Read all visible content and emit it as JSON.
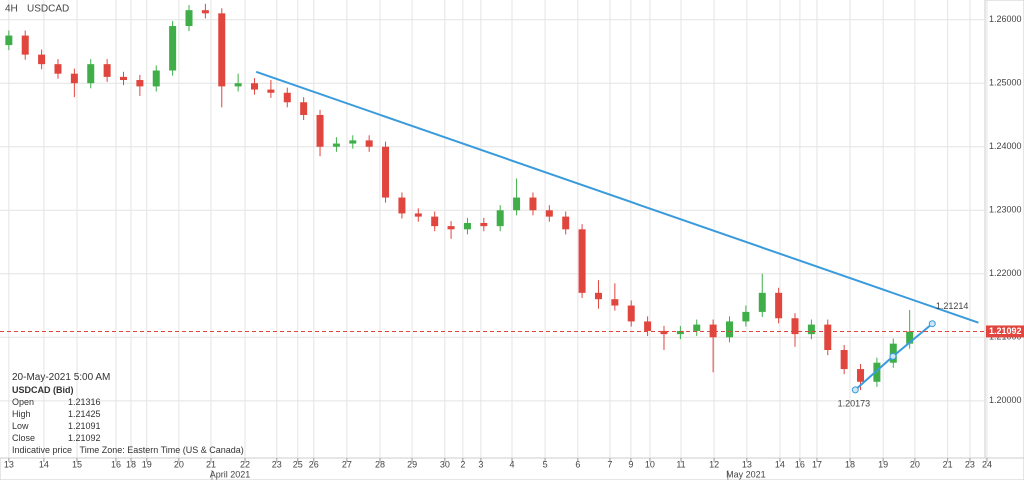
{
  "chart_data": {
    "type": "candlestick",
    "timeframe": "4H",
    "title": "USDCAD",
    "xlim": [
      -0.27,
      29.8
    ],
    "ylim": [
      1.191,
      1.2631
    ],
    "yticks": [
      {
        "value": 1.2,
        "label": "1.20000"
      },
      {
        "value": 1.21,
        "label": "1.21000"
      },
      {
        "value": 1.22,
        "label": "1.22000"
      },
      {
        "value": 1.23,
        "label": "1.23000"
      },
      {
        "value": 1.24,
        "label": "1.24000"
      },
      {
        "value": 1.25,
        "label": "1.25000"
      },
      {
        "value": 1.26,
        "label": "1.26000"
      }
    ],
    "xticks": [
      {
        "value": 0,
        "label": "13"
      },
      {
        "value": 1.07,
        "label": "14"
      },
      {
        "value": 2.08,
        "label": "15"
      },
      {
        "value": 3.27,
        "label": "16"
      },
      {
        "value": 3.73,
        "label": "18"
      },
      {
        "value": 4.21,
        "label": "19"
      },
      {
        "value": 5.19,
        "label": "20"
      },
      {
        "value": 6.17,
        "label": "21"
      },
      {
        "value": 7.21,
        "label": "22"
      },
      {
        "value": 8.18,
        "label": "23"
      },
      {
        "value": 8.82,
        "label": "25"
      },
      {
        "value": 9.31,
        "label": "26"
      },
      {
        "value": 10.32,
        "label": "27"
      },
      {
        "value": 11.33,
        "label": "28"
      },
      {
        "value": 12.31,
        "label": "29"
      },
      {
        "value": 13.31,
        "label": "30"
      },
      {
        "value": 13.86,
        "label": "2"
      },
      {
        "value": 14.41,
        "label": "3"
      },
      {
        "value": 15.36,
        "label": "4"
      },
      {
        "value": 16.37,
        "label": "5"
      },
      {
        "value": 17.37,
        "label": "6"
      },
      {
        "value": 18.35,
        "label": "7"
      },
      {
        "value": 18.99,
        "label": "9"
      },
      {
        "value": 19.57,
        "label": "10"
      },
      {
        "value": 20.52,
        "label": "11"
      },
      {
        "value": 21.53,
        "label": "12"
      },
      {
        "value": 22.53,
        "label": "13"
      },
      {
        "value": 23.54,
        "label": "14"
      },
      {
        "value": 24.15,
        "label": "16"
      },
      {
        "value": 24.67,
        "label": "17"
      },
      {
        "value": 25.68,
        "label": "18"
      },
      {
        "value": 26.69,
        "label": "19"
      },
      {
        "value": 27.66,
        "label": "20"
      },
      {
        "value": 28.66,
        "label": "21"
      },
      {
        "value": 29.34,
        "label": "23"
      },
      {
        "value": 29.86,
        "label": "24"
      }
    ],
    "month_ticks": [
      {
        "value": 6.75,
        "label": "April 2021"
      },
      {
        "value": 22.5,
        "label": "May 2021"
      }
    ],
    "grid": true,
    "up_color": "#3fae49",
    "down_color": "#e0453e",
    "x": [
      0,
      0.5,
      1,
      1.5,
      2,
      2.5,
      3,
      3.5,
      4,
      4.5,
      5,
      5.5,
      6,
      6.5,
      7,
      7.5,
      8,
      8.5,
      9,
      9.5,
      10,
      10.5,
      11,
      11.5,
      12,
      12.5,
      13,
      13.5,
      14,
      14.5,
      15,
      15.5,
      16,
      16.5,
      17,
      17.5,
      18,
      18.5,
      19,
      19.5,
      20,
      20.5,
      21,
      21.5,
      22,
      22.5,
      23,
      23.5,
      24,
      24.5,
      25,
      25.5,
      26,
      26.5,
      27,
      27.5
    ],
    "open": [
      1.256,
      1.2575,
      1.2545,
      1.253,
      1.2515,
      1.25,
      1.253,
      1.251,
      1.2505,
      1.2495,
      1.252,
      1.259,
      1.2615,
      1.261,
      1.2495,
      1.25,
      1.249,
      1.2485,
      1.247,
      1.245,
      1.24,
      1.2405,
      1.241,
      1.24,
      1.232,
      1.2295,
      1.229,
      1.2275,
      1.227,
      1.228,
      1.2275,
      1.23,
      1.232,
      1.23,
      1.229,
      1.227,
      1.217,
      1.216,
      1.215,
      1.2125,
      1.211,
      1.2105,
      1.211,
      1.212,
      1.21,
      1.2125,
      1.214,
      1.217,
      1.213,
      1.2105,
      1.212,
      1.208,
      1.205,
      1.203,
      1.206,
      1.209
    ],
    "high": [
      1.2583,
      1.2583,
      1.2553,
      1.2538,
      1.2523,
      1.2538,
      1.2538,
      1.2518,
      1.2513,
      1.2528,
      1.2598,
      1.2623,
      1.2625,
      1.2618,
      1.2515,
      1.2508,
      1.2505,
      1.2493,
      1.2478,
      1.2458,
      1.2415,
      1.2418,
      1.2418,
      1.2408,
      1.2328,
      1.2303,
      1.2298,
      1.2283,
      1.2288,
      1.2288,
      1.2308,
      1.235,
      1.2328,
      1.2308,
      1.2298,
      1.2278,
      1.219,
      1.2185,
      1.2158,
      1.2133,
      1.2118,
      1.2118,
      1.2128,
      1.2128,
      1.2133,
      1.215,
      1.22,
      1.2178,
      1.2138,
      1.2128,
      1.2128,
      1.2088,
      1.2058,
      1.2068,
      1.2098,
      1.2143
    ],
    "low": [
      1.2552,
      1.2537,
      1.2522,
      1.2507,
      1.2478,
      1.2492,
      1.2502,
      1.2497,
      1.248,
      1.2487,
      1.2512,
      1.2582,
      1.2602,
      1.2462,
      1.2487,
      1.2482,
      1.2477,
      1.2462,
      1.2442,
      1.2385,
      1.2392,
      1.2397,
      1.2392,
      1.2312,
      1.2287,
      1.2282,
      1.2267,
      1.2255,
      1.2262,
      1.2267,
      1.2267,
      1.2292,
      1.2292,
      1.2282,
      1.2262,
      1.2162,
      1.2145,
      1.2142,
      1.2117,
      1.2102,
      1.208,
      1.2097,
      1.2102,
      1.2045,
      1.2092,
      1.2117,
      1.2132,
      1.2122,
      1.2085,
      1.2097,
      1.2072,
      1.2042,
      1.2017,
      1.2022,
      1.2052,
      1.2082
    ],
    "close": [
      1.2575,
      1.2545,
      1.253,
      1.2515,
      1.25,
      1.253,
      1.251,
      1.2505,
      1.2495,
      1.252,
      1.259,
      1.2615,
      1.261,
      1.2495,
      1.25,
      1.249,
      1.2485,
      1.247,
      1.245,
      1.24,
      1.2405,
      1.241,
      1.24,
      1.232,
      1.2295,
      1.229,
      1.2275,
      1.227,
      1.228,
      1.2275,
      1.23,
      1.232,
      1.23,
      1.229,
      1.227,
      1.217,
      1.216,
      1.215,
      1.2125,
      1.211,
      1.2105,
      1.211,
      1.212,
      1.21,
      1.2125,
      1.214,
      1.217,
      1.213,
      1.2105,
      1.212,
      1.208,
      1.205,
      1.203,
      1.206,
      1.209,
      1.2109
    ],
    "trendlines": [
      {
        "x": [
          7.55,
          29.6
        ],
        "y": [
          1.2518,
          1.2123
        ],
        "color": "#3a9bdc"
      },
      {
        "x": [
          25.84,
          26.99,
          28.19
        ],
        "y": [
          1.20173,
          1.207,
          1.21214
        ],
        "color": "#3a9bdc"
      }
    ],
    "annotations": [
      {
        "x": 28.3,
        "y": 1.2148,
        "text": 1.21214
      },
      {
        "x": 25.3,
        "y": 1.1995,
        "text": 1.20173
      }
    ],
    "last_price": 1.21092,
    "last_price_color": "#e0453e"
  },
  "info": {
    "date": "20-May-2021 5:00 AM",
    "instrument": "USDCAD (Bid)",
    "rows": [
      [
        "Open",
        1.21316
      ],
      [
        "High",
        1.21425
      ],
      [
        "Low",
        1.21091
      ],
      [
        "Close",
        1.21092
      ]
    ],
    "note": "Indicative price",
    "timezone": "Time Zone: Eastern Time (US & Canada)"
  }
}
